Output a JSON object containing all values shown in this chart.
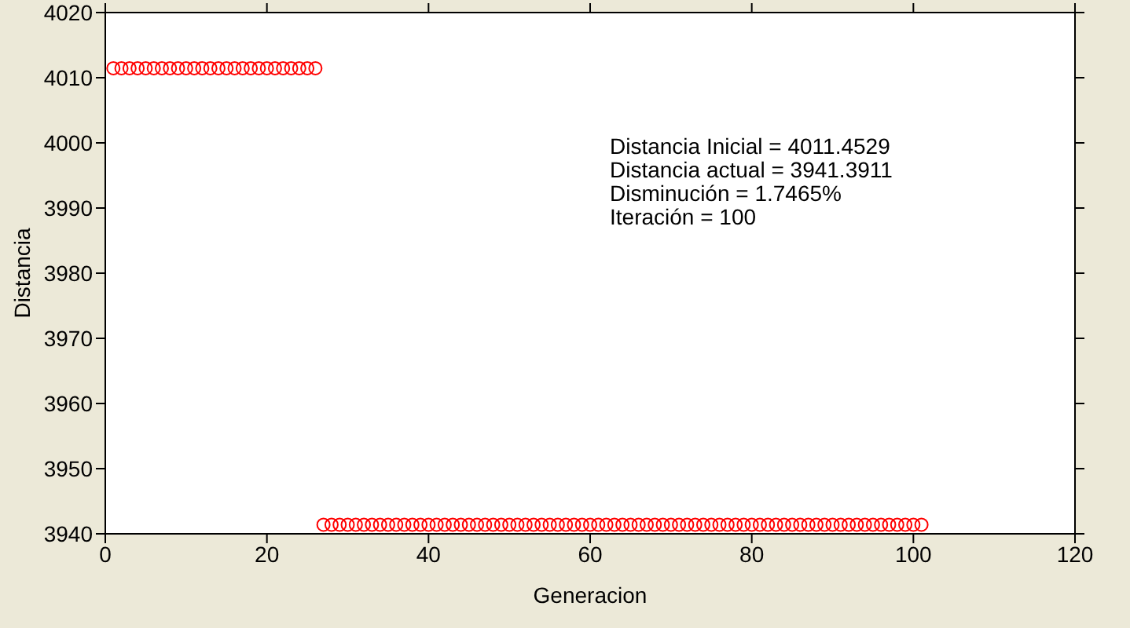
{
  "chart_data": {
    "type": "scatter",
    "xlabel": "Generacion",
    "ylabel": "Distancia",
    "annotations": [
      "Distancia Inicial = 4011.4529",
      "Distancia actual = 3941.3911",
      "Disminución = 1.7465%",
      "Iteración = 100"
    ],
    "x": [
      1,
      2,
      3,
      4,
      5,
      6,
      7,
      8,
      9,
      10,
      11,
      12,
      13,
      14,
      15,
      16,
      17,
      18,
      19,
      20,
      21,
      22,
      23,
      24,
      25,
      26,
      27,
      28,
      29,
      30,
      31,
      32,
      33,
      34,
      35,
      36,
      37,
      38,
      39,
      40,
      41,
      42,
      43,
      44,
      45,
      46,
      47,
      48,
      49,
      50,
      51,
      52,
      53,
      54,
      55,
      56,
      57,
      58,
      59,
      60,
      61,
      62,
      63,
      64,
      65,
      66,
      67,
      68,
      69,
      70,
      71,
      72,
      73,
      74,
      75,
      76,
      77,
      78,
      79,
      80,
      81,
      82,
      83,
      84,
      85,
      86,
      87,
      88,
      89,
      90,
      91,
      92,
      93,
      94,
      95,
      96,
      97,
      98,
      99,
      100,
      101
    ],
    "series": [
      {
        "color": "#ff0000",
        "values": [
          4011.4529,
          4011.4529,
          4011.4529,
          4011.4529,
          4011.4529,
          4011.4529,
          4011.4529,
          4011.4529,
          4011.4529,
          4011.4529,
          4011.4529,
          4011.4529,
          4011.4529,
          4011.4529,
          4011.4529,
          4011.4529,
          4011.4529,
          4011.4529,
          4011.4529,
          4011.4529,
          4011.4529,
          4011.4529,
          4011.4529,
          4011.4529,
          4011.4529,
          4011.4529,
          3941.3911,
          3941.3911,
          3941.3911,
          3941.3911,
          3941.3911,
          3941.3911,
          3941.3911,
          3941.3911,
          3941.3911,
          3941.3911,
          3941.3911,
          3941.3911,
          3941.3911,
          3941.3911,
          3941.3911,
          3941.3911,
          3941.3911,
          3941.3911,
          3941.3911,
          3941.3911,
          3941.3911,
          3941.3911,
          3941.3911,
          3941.3911,
          3941.3911,
          3941.3911,
          3941.3911,
          3941.3911,
          3941.3911,
          3941.3911,
          3941.3911,
          3941.3911,
          3941.3911,
          3941.3911,
          3941.3911,
          3941.3911,
          3941.3911,
          3941.3911,
          3941.3911,
          3941.3911,
          3941.3911,
          3941.3911,
          3941.3911,
          3941.3911,
          3941.3911,
          3941.3911,
          3941.3911,
          3941.3911,
          3941.3911,
          3941.3911,
          3941.3911,
          3941.3911,
          3941.3911,
          3941.3911,
          3941.3911,
          3941.3911,
          3941.3911,
          3941.3911,
          3941.3911,
          3941.3911,
          3941.3911,
          3941.3911,
          3941.3911,
          3941.3911,
          3941.3911,
          3941.3911,
          3941.3911,
          3941.3911,
          3941.3911,
          3941.3911,
          3941.3911,
          3941.3911,
          3941.3911,
          3941.3911,
          3941.3911
        ]
      }
    ],
    "xlim": [
      0,
      120
    ],
    "xticks": [
      0,
      20,
      40,
      60,
      80,
      100,
      120
    ],
    "ylim": [
      3940,
      4020
    ],
    "yticks": [
      3940,
      3950,
      3960,
      3970,
      3980,
      3990,
      4000,
      4010,
      4020
    ],
    "marker": "circle",
    "grid": false,
    "legend": false
  }
}
